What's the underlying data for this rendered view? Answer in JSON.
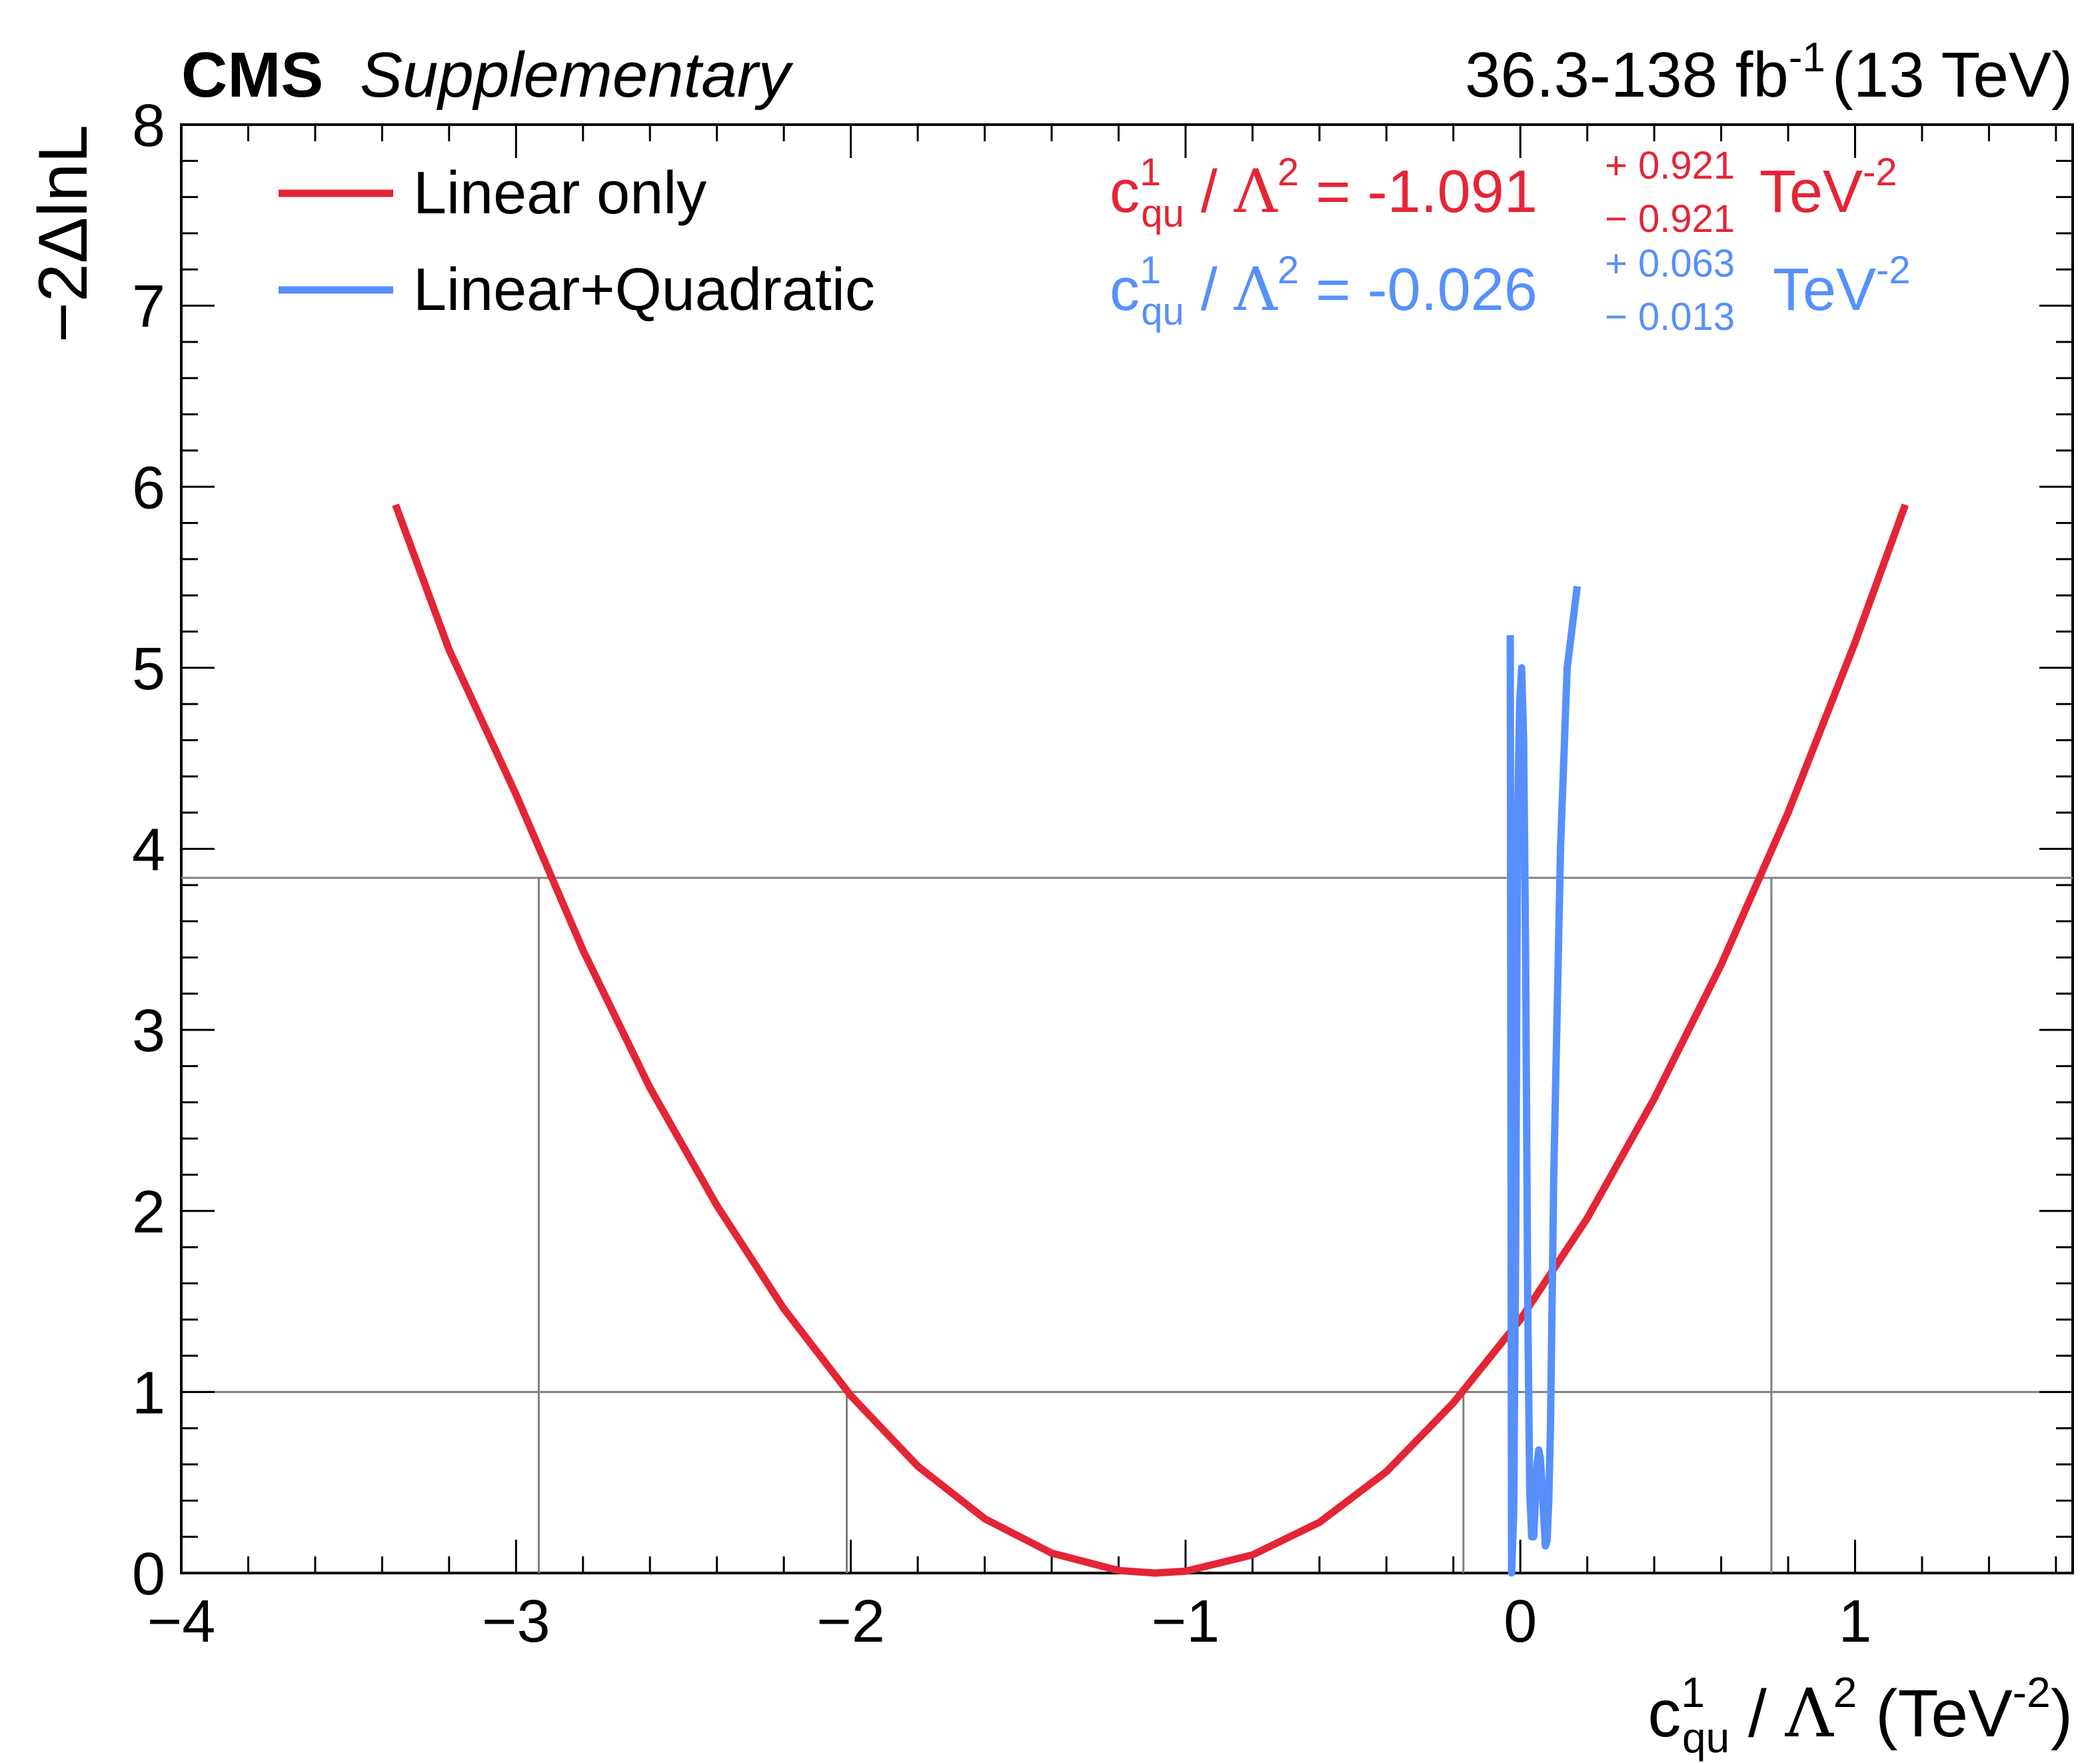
{
  "header": {
    "cms_label": "CMS",
    "supplementary_label": "Supplementary",
    "lumi_text": "36.3-138 fb",
    "lumi_exponent": "-1",
    "energy_text": "(13 TeV)"
  },
  "axes": {
    "x_label": {
      "c": "c",
      "sup": "1",
      "sub": "qu",
      "slash": " / ",
      "lambda": "Λ",
      "lambda_pow": "2",
      "unit_open": " (TeV",
      "unit_pow": "-2",
      "unit_close": ")"
    },
    "y_label": "−2ΔlnL"
  },
  "legend": [
    {
      "label": "Linear only",
      "color": "#e42536"
    },
    {
      "label": "Linear+Quadratic",
      "color": "#5790fc"
    }
  ],
  "results": [
    {
      "c": "c",
      "sup": "1",
      "sub": "qu",
      "slash": " / ",
      "lambda": "Λ",
      "lambda_pow": "2",
      "equals": " = ",
      "value": "-1.091",
      "up": "+ 0.921",
      "down": "− 0.921",
      "unit": "TeV",
      "unit_pow": "-2",
      "color": "#e42536"
    },
    {
      "c": "c",
      "sup": "1",
      "sub": "qu",
      "slash": " / ",
      "lambda": "Λ",
      "lambda_pow": "2",
      "equals": " = ",
      "value": "-0.026",
      "up": "+ 0.063",
      "down": "− 0.013",
      "unit": "TeV",
      "unit_pow": "-2",
      "color": "#5790fc"
    }
  ],
  "chart_data": {
    "type": "line",
    "title": "",
    "xlabel": "c_qu^1 / Λ^2 (TeV^-2)",
    "ylabel": "−2ΔlnL",
    "xlim": [
      -4.0,
      1.65
    ],
    "ylim": [
      0,
      8
    ],
    "x_major_ticks": [
      -4,
      -3,
      -2,
      -1,
      0,
      1
    ],
    "x_tick_labels": [
      "−4",
      "−3",
      "−2",
      "−1",
      "0",
      "1"
    ],
    "y_major_ticks": [
      0,
      1,
      2,
      3,
      4,
      5,
      6,
      7,
      8
    ],
    "y_tick_labels": [
      "0",
      "1",
      "2",
      "3",
      "4",
      "5",
      "6",
      "7",
      "8"
    ],
    "reference_lines": [
      {
        "y": 1.0,
        "x_crossings": [
          -2.012,
          -0.17
        ]
      },
      {
        "y": 3.84,
        "x_crossings": [
          -2.932,
          0.75
        ]
      }
    ],
    "series": [
      {
        "name": "Linear only",
        "color": "#e42536",
        "x": [
          -3.36,
          -3.2,
          -3.0,
          -2.8,
          -2.6,
          -2.4,
          -2.2,
          -2.0,
          -1.8,
          -1.6,
          -1.4,
          -1.2,
          -1.091,
          -1.0,
          -0.8,
          -0.6,
          -0.4,
          -0.2,
          0.0,
          0.2,
          0.4,
          0.6,
          0.8,
          1.0,
          1.15
        ],
        "y": [
          5.9,
          5.1,
          4.3,
          3.44,
          2.68,
          2.03,
          1.46,
          0.98,
          0.59,
          0.3,
          0.11,
          0.014,
          0.0,
          0.01,
          0.1,
          0.28,
          0.56,
          0.94,
          1.4,
          1.96,
          2.62,
          3.36,
          4.2,
          5.14,
          5.9
        ]
      },
      {
        "name": "Linear+Quadratic",
        "color": "#5790fc",
        "x": [
          -0.03,
          -0.028,
          -0.026,
          -0.02,
          -0.014,
          -0.008,
          -0.002,
          0.004,
          0.01,
          0.016,
          0.022,
          0.028,
          0.034,
          0.04,
          0.045,
          0.05,
          0.055,
          0.06,
          0.065,
          0.07,
          0.075,
          0.08,
          0.085,
          0.09,
          0.1,
          0.12,
          0.14,
          0.16,
          0.17
        ],
        "y": [
          5.18,
          2.5,
          0.0,
          0.32,
          1.8,
          4.2,
          4.8,
          5.0,
          4.6,
          3.4,
          1.5,
          0.45,
          0.2,
          0.2,
          0.4,
          0.6,
          0.68,
          0.63,
          0.48,
          0.3,
          0.15,
          0.18,
          0.4,
          0.8,
          2.2,
          4.0,
          5.0,
          5.3,
          5.45
        ]
      }
    ]
  }
}
